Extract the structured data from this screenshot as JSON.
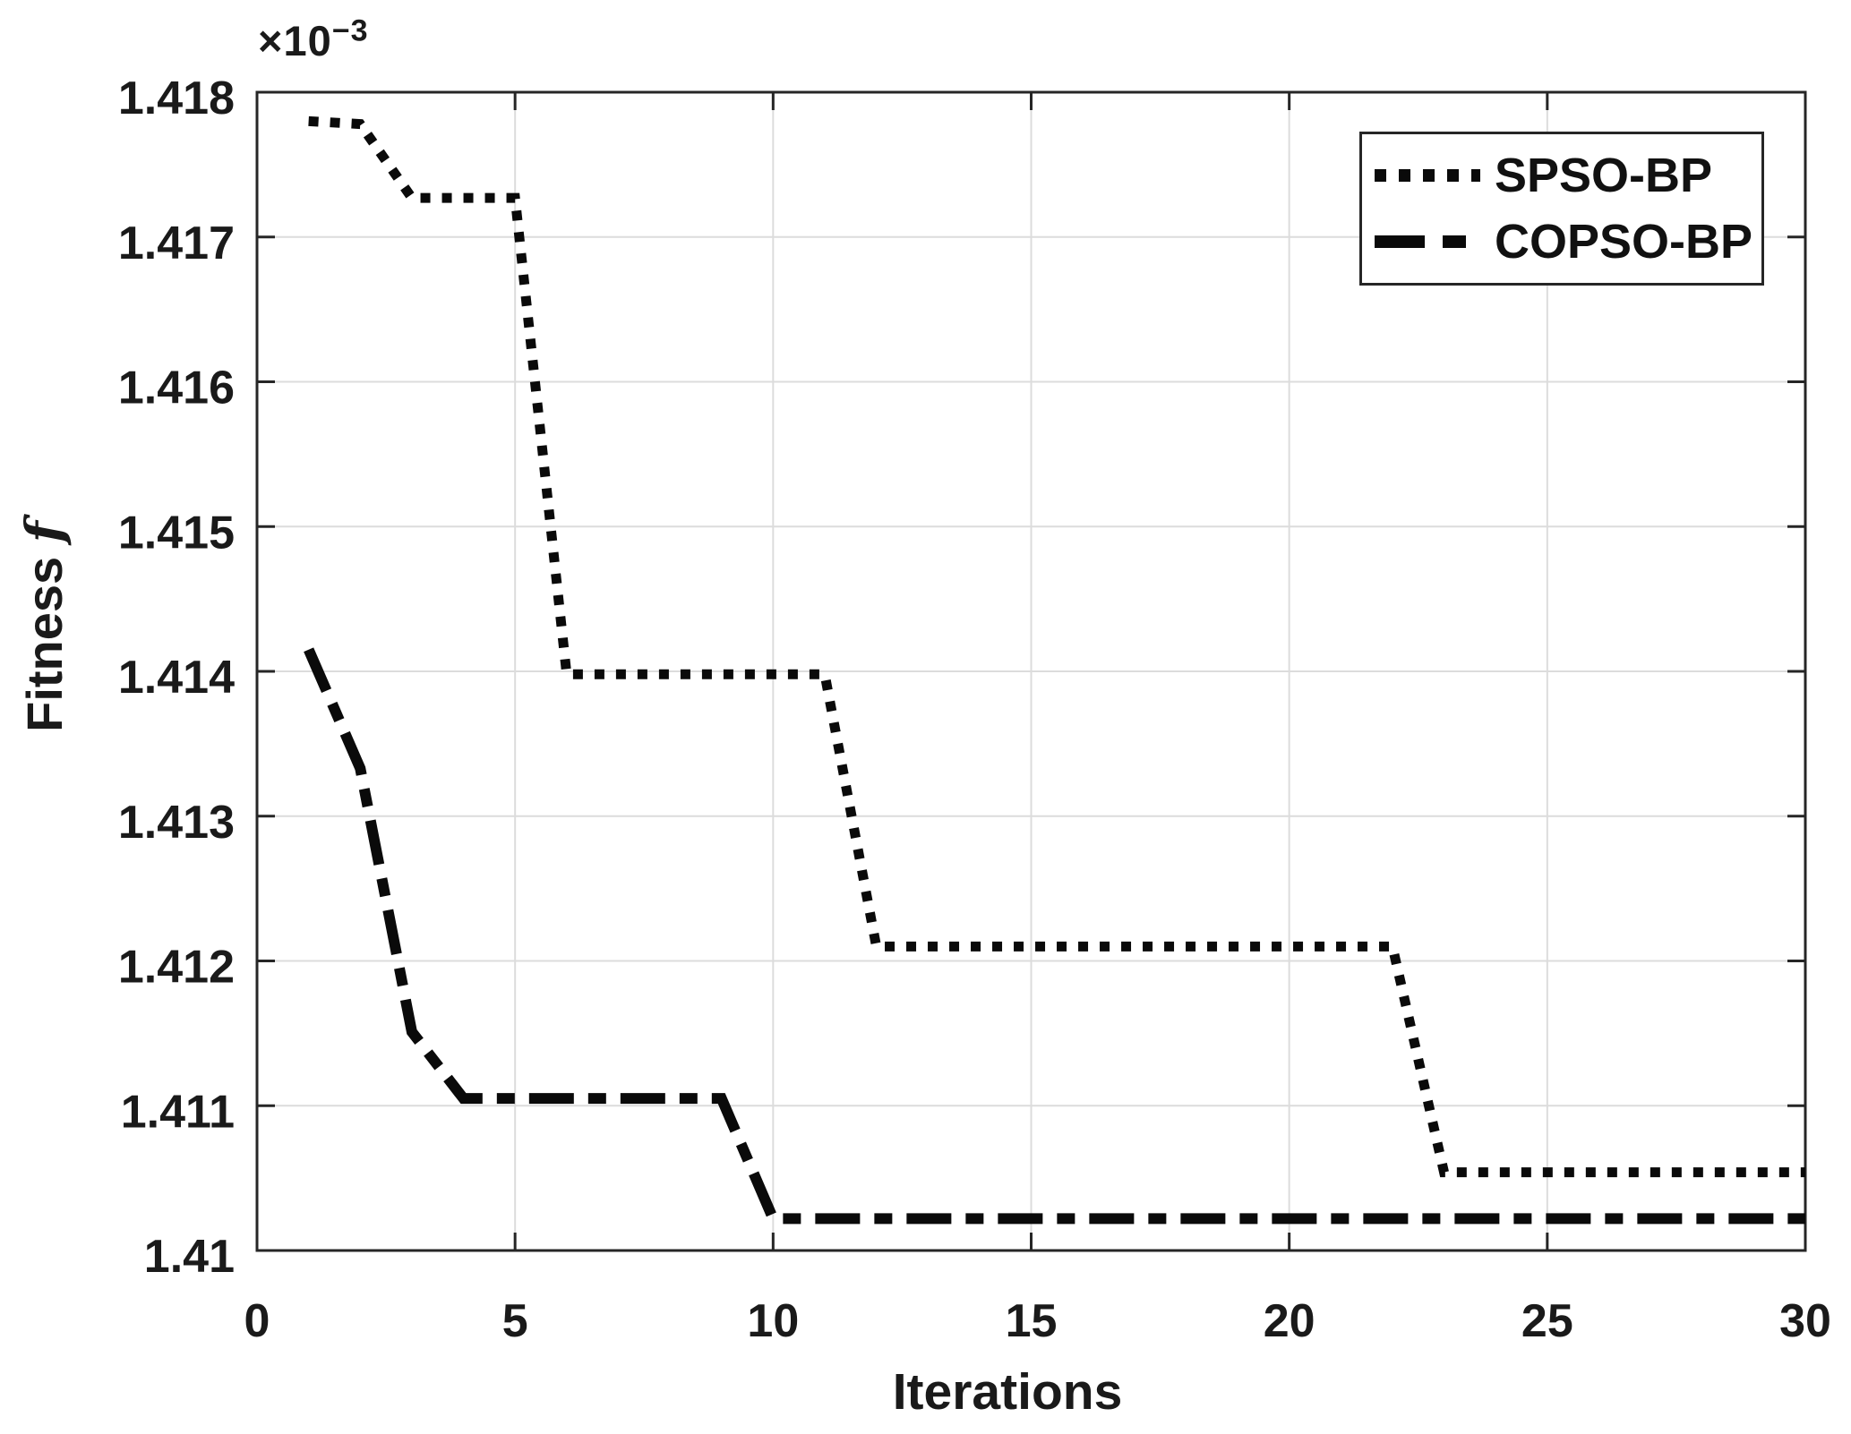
{
  "chart_data": {
    "type": "line",
    "title": "",
    "xlabel": "Iterations",
    "ylabel": "Fitness f",
    "ylabel_prefix": "Fitness ",
    "ylabel_variable": "f",
    "y_offset_base": "×10",
    "y_offset_exp": "−3",
    "y_units_note": "y values shown in units of 1e-3",
    "xlim": [
      0,
      30
    ],
    "ylim": [
      1.41,
      1.418
    ],
    "grid": true,
    "legend_position": "top-right",
    "x_ticks": [
      0,
      5,
      10,
      15,
      20,
      25,
      30
    ],
    "x_tick_labels": [
      "0",
      "5",
      "10",
      "15",
      "20",
      "25",
      "30"
    ],
    "y_ticks": [
      1.41,
      1.411,
      1.412,
      1.413,
      1.414,
      1.415,
      1.416,
      1.417,
      1.418
    ],
    "y_tick_labels": [
      "1.41",
      "1.411",
      "1.412",
      "1.413",
      "1.414",
      "1.415",
      "1.416",
      "1.417",
      "1.418"
    ],
    "x": [
      1,
      2,
      3,
      4,
      5,
      6,
      7,
      8,
      9,
      10,
      11,
      12,
      13,
      14,
      15,
      16,
      17,
      18,
      19,
      20,
      21,
      22,
      23,
      24,
      25,
      26,
      27,
      28,
      29,
      30
    ],
    "series": [
      {
        "name": "SPSO-BP",
        "style": "dotted",
        "color": "#0a0a0a",
        "values": [
          1.4178,
          1.41778,
          1.41727,
          1.41727,
          1.41727,
          1.41398,
          1.41398,
          1.41398,
          1.41398,
          1.41398,
          1.41398,
          1.4121,
          1.4121,
          1.4121,
          1.4121,
          1.4121,
          1.4121,
          1.4121,
          1.4121,
          1.4121,
          1.4121,
          1.4121,
          1.41054,
          1.41054,
          1.41054,
          1.41054,
          1.41054,
          1.41054,
          1.41054,
          1.41054
        ]
      },
      {
        "name": "COPSO-BP",
        "style": "dash-dot",
        "color": "#0a0a0a",
        "values": [
          1.41415,
          1.41333,
          1.41151,
          1.41105,
          1.41105,
          1.41105,
          1.41105,
          1.41105,
          1.41105,
          1.41022,
          1.41022,
          1.41022,
          1.41022,
          1.41022,
          1.41022,
          1.41022,
          1.41022,
          1.41022,
          1.41022,
          1.41022,
          1.41022,
          1.41022,
          1.41022,
          1.41022,
          1.41022,
          1.41022,
          1.41022,
          1.41022,
          1.41022,
          1.41022
        ]
      }
    ],
    "colors": {
      "axis": "#262626",
      "grid": "#dcdcdc",
      "text": "#1a1a1a",
      "background": "#ffffff"
    }
  }
}
